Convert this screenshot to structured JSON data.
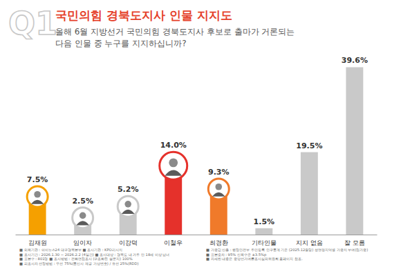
{
  "header": {
    "number": "Q1"
  },
  "chart_data": {
    "type": "bar",
    "title": "국민의힘 경북도지사 인물 지지도",
    "subtitle": [
      "올해 6월 지방선거 국민의힘 경북도지사 후보로 출마가 거론되는",
      "다음 인물 중 누구를 지지하십니까?"
    ],
    "categories": [
      "김재원",
      "임이자",
      "이강덕",
      "이철우",
      "최경환",
      "기타인물",
      "지지 없음",
      "잘 모름"
    ],
    "values": [
      7.5,
      2.5,
      5.2,
      14.0,
      9.3,
      1.5,
      19.5,
      39.6
    ],
    "value_labels": [
      "7.5%",
      "2.5%",
      "5.2%",
      "14.0%",
      "9.3%",
      "1.5%",
      "19.5%",
      "39.6%"
    ],
    "colors": [
      "#f5a000",
      "#c9c9c9",
      "#c9c9c9",
      "#e5312b",
      "#f07a2a",
      "#c9c9c9",
      "#c9c9c9",
      "#c9c9c9"
    ],
    "ylim": [
      0,
      40
    ],
    "tick_labels": false,
    "data_labels": true,
    "annotations": [
      [
        "■ 의뢰기관 : 아이뉴스24 대구경북본부  ■ 조사기관 : KPO리서치",
        "■ 조사기간 : 2026.1.30 ~ 2026.2.2 (4일간)  ■ 조사대상 : 경북도 내 거주 만 18세 이상 남녀",
        "■ 표본수 : 801명  ■ 조사방법 : 전화면접조사 (구조화된 설문지) 100%",
        "■ 피조사자 선정방법 : 무선 75%(통신사 제공 가상번호) / 유선 25%(RDD)"
      ],
      [
        "■ 가중값 산출 : 행정안전부 주민등록 인구통계 기준 (2025.12월말) 성연령지역별 가중치 부여(림가중)",
        "■ 표본오차 : 95% 신뢰수준 ±3.5%p",
        "■ 자세한 내용은 중앙선거여론조사심의위원회 홈페이지 참조."
      ]
    ]
  }
}
